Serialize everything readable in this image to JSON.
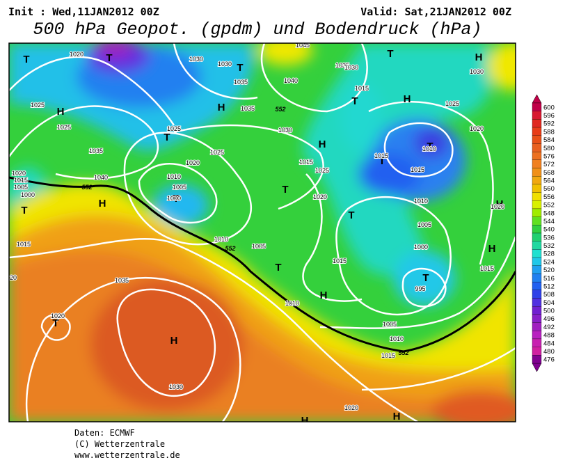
{
  "header": {
    "init": "Init : Wed,11JAN2012 00Z",
    "valid": "Valid: Sat,21JAN2012 00Z",
    "title": "500 hPa Geopot. (gpdm) und Bodendruck (hPa)"
  },
  "map": {
    "centers": [
      "T",
      "T",
      "H",
      "T",
      "H",
      "T",
      "H",
      "T",
      "T",
      "T",
      "H",
      "T",
      "H",
      "H",
      "T",
      "T",
      "T",
      "H",
      "T",
      "H",
      "H",
      "T",
      "T",
      "H",
      "H",
      "H",
      "T"
    ],
    "isobar_labels": [
      "1020",
      "1030",
      "1030",
      "1035",
      "1035",
      "1045",
      "1040",
      "1035",
      "1030",
      "1015",
      "1030",
      "1025",
      "1020",
      "1025",
      "1025",
      "1025",
      "1030",
      "1025",
      "1035",
      "1040",
      "1020",
      "1010",
      "1005",
      "1000",
      "1015",
      "1025",
      "1020",
      "1015",
      "1010",
      "1015",
      "1010",
      "1020",
      "1005",
      "1000",
      "995",
      "1015",
      "1010",
      "1005",
      "1015",
      "1010",
      "1005",
      "1010",
      "1015",
      "1020",
      "1030",
      "1035",
      "1020",
      "1015",
      "1020",
      "1015",
      "1005",
      "1000",
      "20"
    ],
    "contour_labels": [
      "552",
      "552",
      "552",
      "552"
    ]
  },
  "colorbar": {
    "values": [
      600,
      596,
      592,
      588,
      584,
      580,
      576,
      572,
      568,
      564,
      560,
      556,
      552,
      548,
      544,
      540,
      536,
      532,
      528,
      524,
      520,
      516,
      512,
      508,
      504,
      500,
      496,
      492,
      488,
      484,
      480,
      476
    ],
    "colors": [
      "#c00048",
      "#d81830",
      "#e02820",
      "#e83c18",
      "#e85018",
      "#e86020",
      "#ec7020",
      "#f08020",
      "#f09018",
      "#f0a810",
      "#f0c000",
      "#f0e000",
      "#d8f000",
      "#a0ec00",
      "#60e020",
      "#30d040",
      "#20d070",
      "#20d8a0",
      "#20e0d0",
      "#20c8e8",
      "#20a0f0",
      "#2080f0",
      "#2060f0",
      "#3040e8",
      "#5030e0",
      "#7020d0",
      "#8820c8",
      "#a020c0",
      "#b820c0",
      "#c820b0",
      "#d020a0",
      "#800090"
    ]
  },
  "footer": [
    "Daten: ECMWF",
    "(C) Wetterzentrale",
    "www.wetterzentrale.de"
  ]
}
